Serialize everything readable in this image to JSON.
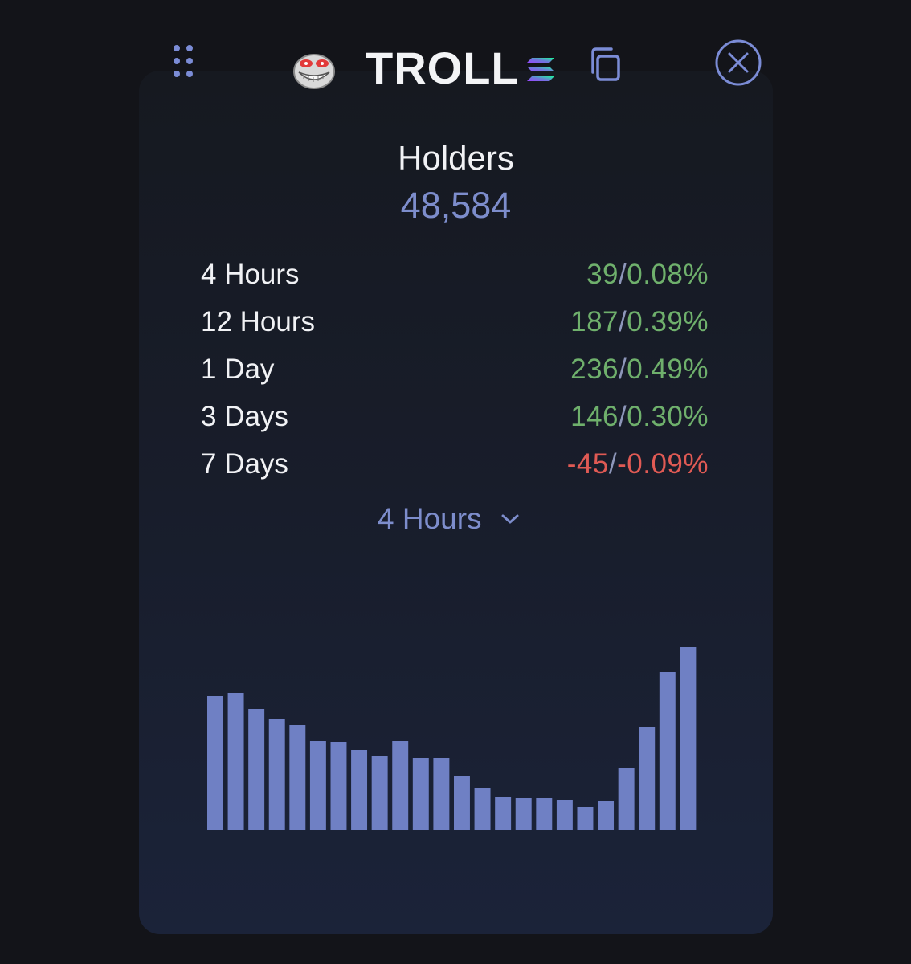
{
  "header": {
    "token_name": "TROLL",
    "icons": {
      "drag": "drag-handle-icon",
      "avatar": "troll-face-avatar",
      "chain": "solana-icon",
      "copy": "copy-icon",
      "close": "close-icon"
    }
  },
  "holders": {
    "title": "Holders",
    "count": "48,584"
  },
  "stats": [
    {
      "label": "4 Hours",
      "change": "39",
      "percent": "0.08%",
      "trend": "up"
    },
    {
      "label": "12 Hours",
      "change": "187",
      "percent": "0.39%",
      "trend": "up"
    },
    {
      "label": "1 Day",
      "change": "236",
      "percent": "0.49%",
      "trend": "up"
    },
    {
      "label": "3 Days",
      "change": "146",
      "percent": "0.30%",
      "trend": "up"
    },
    {
      "label": "7 Days",
      "change": "-45",
      "percent": "-0.09%",
      "trend": "down"
    }
  ],
  "period_selector": {
    "selected": "4 Hours"
  },
  "colors": {
    "accent": "#7d8dcc",
    "bar": "#6f80c4",
    "positive": "#6fb06c",
    "negative": "#e05a54"
  },
  "chart_data": {
    "type": "bar",
    "values": [
      167,
      170,
      150,
      138,
      130,
      110,
      109,
      100,
      92,
      110,
      89,
      89,
      67,
      52,
      41,
      40,
      40,
      37,
      28,
      36,
      77,
      128,
      197,
      228
    ],
    "ylim": [
      0,
      240
    ],
    "grid": false
  }
}
